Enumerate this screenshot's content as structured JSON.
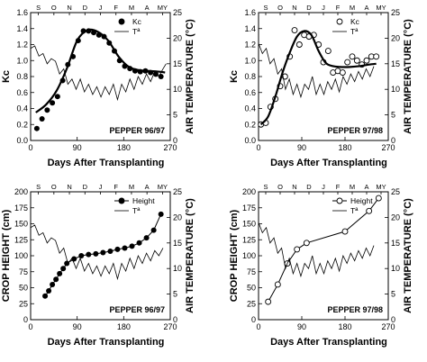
{
  "chart_data": [
    {
      "type": "scatter",
      "panel": "top-left",
      "title": "",
      "annotation": "PEPPER 96/97",
      "xlabel": "Days After Transplanting",
      "ylabel": "Kc",
      "y2label": "AIR TEMPERATURE (°C)",
      "xlim": [
        0,
        270
      ],
      "ylim": [
        0,
        1.6
      ],
      "y2lim": [
        0,
        25
      ],
      "xticks": [
        0,
        90,
        180,
        270
      ],
      "yticks": [
        0,
        0.2,
        0.4,
        0.6,
        0.8,
        1.0,
        1.2,
        1.4,
        1.6
      ],
      "y2ticks": [
        0,
        5,
        10,
        15,
        20,
        25
      ],
      "months": [
        "S",
        "O",
        "N",
        "D",
        "J",
        "F",
        "M",
        "A",
        "MY"
      ],
      "legend": [
        "Kc",
        "Tª"
      ],
      "legend_position": "top-right",
      "series": [
        {
          "name": "Kc",
          "style": "filled-points",
          "axis": "left",
          "x": [
            12,
            22,
            32,
            42,
            52,
            62,
            72,
            82,
            92,
            102,
            112,
            122,
            132,
            142,
            152,
            162,
            172,
            182,
            192,
            202,
            212,
            222,
            232,
            242,
            252
          ],
          "y": [
            0.15,
            0.27,
            0.38,
            0.47,
            0.55,
            0.75,
            0.95,
            1.05,
            1.25,
            1.37,
            1.37,
            1.35,
            1.32,
            1.3,
            1.22,
            1.12,
            1.0,
            0.93,
            0.9,
            0.87,
            0.86,
            0.87,
            0.85,
            0.83,
            0.8
          ]
        },
        {
          "name": "Kc fit",
          "style": "thick-line",
          "axis": "left",
          "x": [
            10,
            30,
            50,
            70,
            90,
            110,
            130,
            150,
            170,
            190,
            210,
            230,
            250,
            260
          ],
          "y": [
            0.35,
            0.45,
            0.62,
            0.9,
            1.25,
            1.38,
            1.36,
            1.25,
            1.05,
            0.92,
            0.88,
            0.87,
            0.86,
            0.85
          ]
        },
        {
          "name": "Tª",
          "style": "thin-line",
          "axis": "right",
          "x": [
            0,
            8,
            16,
            24,
            32,
            40,
            48,
            56,
            64,
            72,
            80,
            88,
            96,
            104,
            112,
            120,
            128,
            136,
            144,
            152,
            160,
            168,
            176,
            184,
            192,
            200,
            208,
            216,
            224,
            232,
            240,
            248,
            256,
            262
          ],
          "y": [
            18,
            18.5,
            16.5,
            17,
            15,
            16,
            15.5,
            13,
            14,
            11,
            12,
            10,
            12,
            9.5,
            11,
            9,
            10.5,
            8.5,
            10.5,
            9,
            11,
            8,
            11,
            9.5,
            12,
            10,
            12.5,
            11,
            13,
            11.5,
            13.5,
            12.5,
            14,
            15
          ]
        }
      ]
    },
    {
      "type": "scatter",
      "panel": "top-right",
      "title": "",
      "annotation": "PEPPER 97/98",
      "xlabel": "Days After Transplanting",
      "ylabel": "Kc",
      "y2label": "AIR TEMPERATURE (°C)",
      "xlim": [
        0,
        270
      ],
      "ylim": [
        0,
        1.6
      ],
      "y2lim": [
        0,
        25
      ],
      "xticks": [
        0,
        90,
        180,
        270
      ],
      "yticks": [
        0,
        0.2,
        0.4,
        0.6,
        0.8,
        1.0,
        1.2,
        1.4,
        1.6
      ],
      "y2ticks": [
        0,
        5,
        10,
        15,
        20,
        25
      ],
      "months": [
        "S",
        "O",
        "N",
        "D",
        "J",
        "F",
        "M",
        "A",
        "MY"
      ],
      "legend": [
        "Kc",
        "Tª"
      ],
      "legend_position": "top-right",
      "series": [
        {
          "name": "Kc",
          "style": "open-points",
          "axis": "left",
          "x": [
            5,
            15,
            25,
            35,
            45,
            55,
            65,
            75,
            85,
            95,
            105,
            115,
            125,
            135,
            145,
            155,
            165,
            175,
            185,
            195,
            205,
            215,
            225,
            235,
            245
          ],
          "y": [
            0.2,
            0.22,
            0.42,
            0.52,
            0.68,
            0.8,
            1.05,
            1.38,
            1.2,
            1.32,
            1.3,
            1.32,
            1.2,
            0.98,
            1.12,
            0.85,
            0.87,
            0.85,
            0.98,
            1.05,
            1.0,
            0.95,
            1.0,
            1.05,
            1.05
          ]
        },
        {
          "name": "Kc fit",
          "style": "thick-line",
          "axis": "left",
          "x": [
            5,
            20,
            35,
            50,
            65,
            80,
            95,
            110,
            125,
            140,
            155,
            170,
            190,
            210,
            230,
            245
          ],
          "y": [
            0.2,
            0.3,
            0.55,
            0.85,
            1.1,
            1.3,
            1.37,
            1.32,
            1.12,
            0.97,
            0.93,
            0.92,
            0.92,
            0.93,
            0.95,
            0.96
          ]
        },
        {
          "name": "Tª",
          "style": "thin-line",
          "axis": "right",
          "x": [
            0,
            8,
            16,
            24,
            32,
            40,
            48,
            56,
            64,
            72,
            80,
            88,
            96,
            104,
            112,
            120,
            128,
            136,
            144,
            152,
            160,
            168,
            176,
            184,
            192,
            200,
            208,
            216,
            224,
            232,
            240
          ],
          "y": [
            19,
            17,
            18,
            15,
            16,
            13,
            14,
            10,
            12,
            9,
            11,
            8.5,
            11,
            10,
            12.5,
            9,
            11,
            9,
            11.5,
            10,
            12,
            9.5,
            12.5,
            11,
            13,
            11.5,
            13.5,
            12,
            14,
            12.5,
            14.5
          ]
        }
      ]
    },
    {
      "type": "line",
      "panel": "bottom-left",
      "title": "",
      "annotation": "PEPPER 96/97",
      "xlabel": "Days After Transplanting",
      "ylabel": "CROP HEIGHT (cm)",
      "y2label": "AIR TEMPERATURE (°C)",
      "xlim": [
        0,
        270
      ],
      "ylim": [
        0,
        200
      ],
      "y2lim": [
        0,
        25
      ],
      "xticks": [
        0,
        90,
        180,
        270
      ],
      "yticks": [
        0,
        25,
        50,
        75,
        100,
        125,
        150,
        175,
        200
      ],
      "y2ticks": [
        0,
        5,
        10,
        15,
        20,
        25
      ],
      "months": [
        "S",
        "O",
        "N",
        "D",
        "J",
        "F",
        "M",
        "A",
        "MY"
      ],
      "legend": [
        "Height",
        "Tª"
      ],
      "legend_position": "top-right",
      "series": [
        {
          "name": "Height",
          "style": "filled-points-line",
          "axis": "left",
          "x": [
            28,
            35,
            42,
            49,
            56,
            63,
            70,
            84,
            98,
            112,
            126,
            140,
            154,
            168,
            182,
            196,
            210,
            224,
            238,
            252
          ],
          "y": [
            37,
            45,
            55,
            63,
            72,
            80,
            88,
            95,
            100,
            102,
            103,
            105,
            107,
            110,
            112,
            115,
            120,
            128,
            140,
            165
          ]
        },
        {
          "name": "Tª",
          "style": "thin-line",
          "axis": "right",
          "x": [
            0,
            8,
            16,
            24,
            32,
            40,
            48,
            56,
            64,
            72,
            80,
            88,
            96,
            104,
            112,
            120,
            128,
            136,
            144,
            152,
            160,
            168,
            176,
            184,
            192,
            200,
            208,
            216,
            224,
            232,
            240,
            248,
            256
          ],
          "y": [
            18,
            18.5,
            16.5,
            17,
            15,
            16,
            15.5,
            13,
            14,
            11,
            12,
            10,
            12,
            9.5,
            11,
            9,
            10.5,
            8.5,
            10.5,
            9,
            11,
            8,
            11,
            9.5,
            12,
            10,
            12.5,
            11,
            13,
            11.5,
            13.5,
            12.5,
            14
          ]
        }
      ]
    },
    {
      "type": "line",
      "panel": "bottom-right",
      "title": "",
      "annotation": "PEPPER 97/98",
      "xlabel": "Days After Transplanting",
      "ylabel": "CROP HEIGHT (cm)",
      "y2label": "AIR TEMPERATURE (°C)",
      "xlim": [
        0,
        270
      ],
      "ylim": [
        0,
        200
      ],
      "y2lim": [
        0,
        25
      ],
      "xticks": [
        0,
        90,
        180,
        270
      ],
      "yticks": [
        0,
        25,
        50,
        75,
        100,
        125,
        150,
        175,
        200
      ],
      "y2ticks": [
        0,
        5,
        10,
        15,
        20,
        25
      ],
      "months": [
        "S",
        "O",
        "N",
        "D",
        "J",
        "F",
        "M",
        "A",
        "MY"
      ],
      "legend": [
        "Height",
        "Tª"
      ],
      "legend_position": "top-right",
      "series": [
        {
          "name": "Height",
          "style": "open-points-line",
          "axis": "left",
          "x": [
            20,
            40,
            60,
            80,
            100,
            180,
            230,
            250
          ],
          "y": [
            28,
            55,
            88,
            110,
            120,
            138,
            170,
            190
          ]
        },
        {
          "name": "Tª",
          "style": "thin-line",
          "axis": "right",
          "x": [
            0,
            8,
            16,
            24,
            32,
            40,
            48,
            56,
            64,
            72,
            80,
            88,
            96,
            104,
            112,
            120,
            128,
            136,
            144,
            152,
            160,
            168,
            176,
            184,
            192,
            200,
            208,
            216,
            224,
            232,
            240
          ],
          "y": [
            19,
            17,
            18,
            15,
            16,
            13,
            14,
            10,
            12,
            9,
            11,
            8.5,
            11,
            10,
            12.5,
            9,
            11,
            9,
            11.5,
            10,
            12,
            9.5,
            12.5,
            11,
            13,
            11.5,
            13.5,
            12,
            14,
            12.5,
            14.5
          ]
        }
      ]
    }
  ]
}
